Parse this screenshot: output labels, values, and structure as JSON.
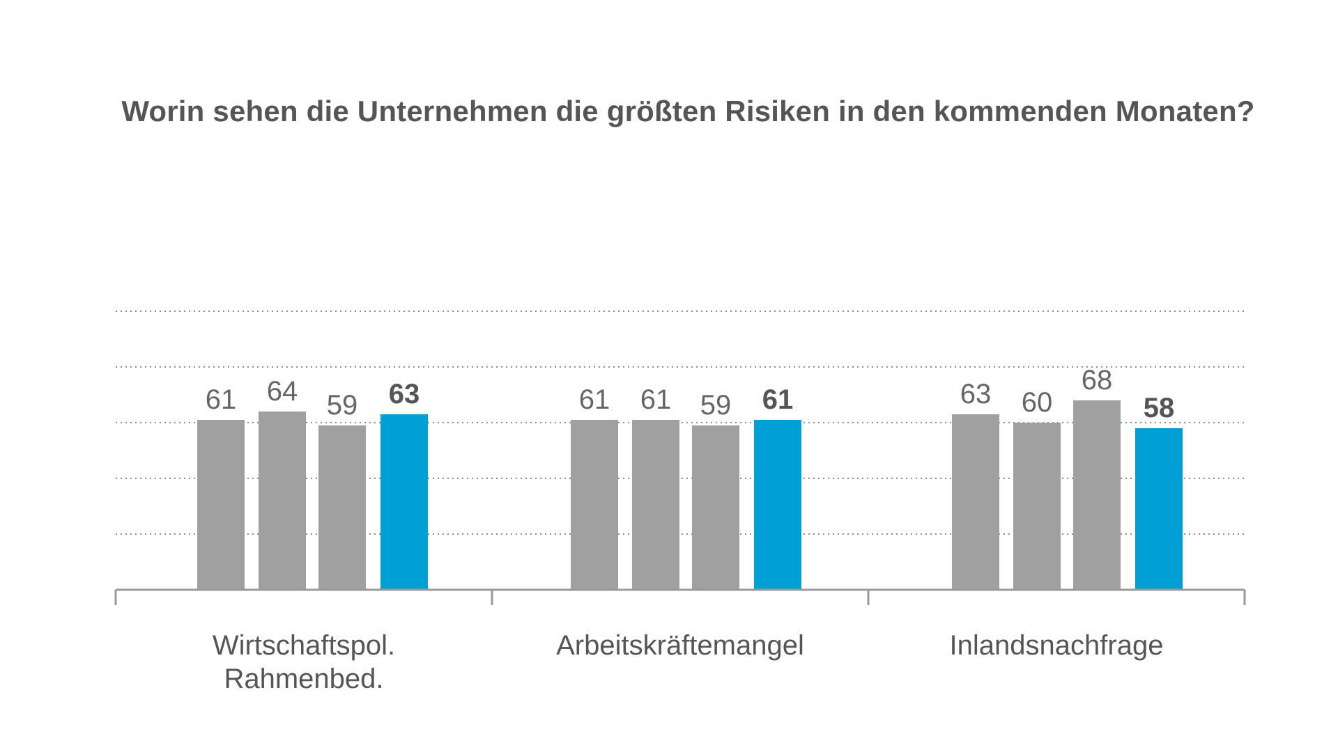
{
  "chart_data": {
    "type": "bar",
    "title": "Worin sehen die Unternehmen die größten Risiken in den kommenden Monaten?",
    "categories": [
      [
        "Wirtschaftspol.",
        "Rahmenbed."
      ],
      [
        "Arbeitskräftemangel"
      ],
      [
        "Inlandsnachfrage"
      ]
    ],
    "series": [
      {
        "values": [
          61,
          61,
          63
        ],
        "color": "#a0a0a0"
      },
      {
        "values": [
          64,
          61,
          60
        ],
        "color": "#a0a0a0"
      },
      {
        "values": [
          59,
          59,
          68
        ],
        "color": "#a0a0a0"
      },
      {
        "values": [
          63,
          61,
          58
        ],
        "color": "#009fd6",
        "bold_labels": true
      }
    ],
    "ylim": [
      0,
      100
    ],
    "grid": true,
    "legend": "none"
  }
}
